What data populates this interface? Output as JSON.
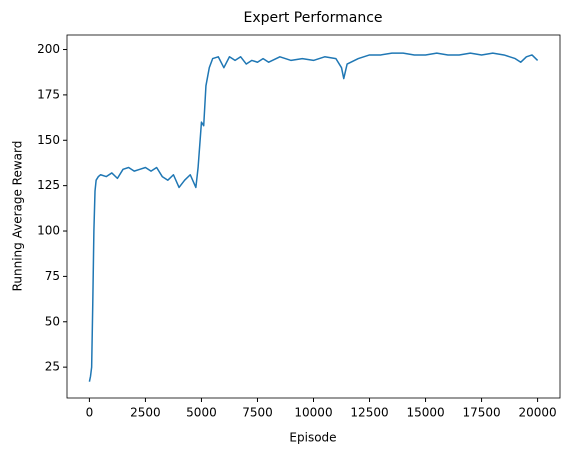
{
  "chart_data": {
    "type": "line",
    "title": "Expert Performance",
    "x_label": "Episode",
    "y_label": "Running Average Reward",
    "series": [
      {
        "name": "Running Average Reward",
        "color": "#1f77b4",
        "x": [
          0,
          50,
          100,
          150,
          200,
          250,
          300,
          400,
          500,
          750,
          1000,
          1250,
          1500,
          1750,
          2000,
          2250,
          2500,
          2750,
          3000,
          3250,
          3500,
          3750,
          4000,
          4250,
          4500,
          4750,
          4850,
          5000,
          5100,
          5200,
          5350,
          5500,
          5750,
          6000,
          6250,
          6500,
          6750,
          7000,
          7250,
          7500,
          7750,
          8000,
          8500,
          9000,
          9500,
          10000,
          10500,
          11000,
          11250,
          11350,
          11500,
          12000,
          12500,
          13000,
          13500,
          14000,
          14500,
          15000,
          15500,
          16000,
          16500,
          17000,
          17500,
          18000,
          18500,
          19000,
          19250,
          19500,
          19750,
          20000
        ],
        "values": [
          17,
          20,
          25,
          60,
          100,
          122,
          128,
          130,
          131,
          130,
          132,
          129,
          134,
          135,
          133,
          134,
          135,
          133,
          135,
          130,
          128,
          131,
          124,
          128,
          131,
          124,
          135,
          160,
          158,
          180,
          190,
          195,
          196,
          190,
          196,
          194,
          196,
          192,
          194,
          193,
          195,
          193,
          196,
          194,
          195,
          194,
          196,
          195,
          190,
          184,
          192,
          195,
          197,
          197,
          198,
          198,
          197,
          197,
          198,
          197,
          197,
          198,
          197,
          198,
          197,
          195,
          193,
          196,
          197,
          194
        ]
      }
    ],
    "xlim": [
      -1000,
      21000
    ],
    "xticks": [
      0,
      2500,
      5000,
      7500,
      10000,
      12500,
      15000,
      17500,
      20000
    ],
    "ylim": [
      8,
      208
    ],
    "yticks": [
      25,
      50,
      75,
      100,
      125,
      150,
      175,
      200
    ],
    "grid": false
  }
}
